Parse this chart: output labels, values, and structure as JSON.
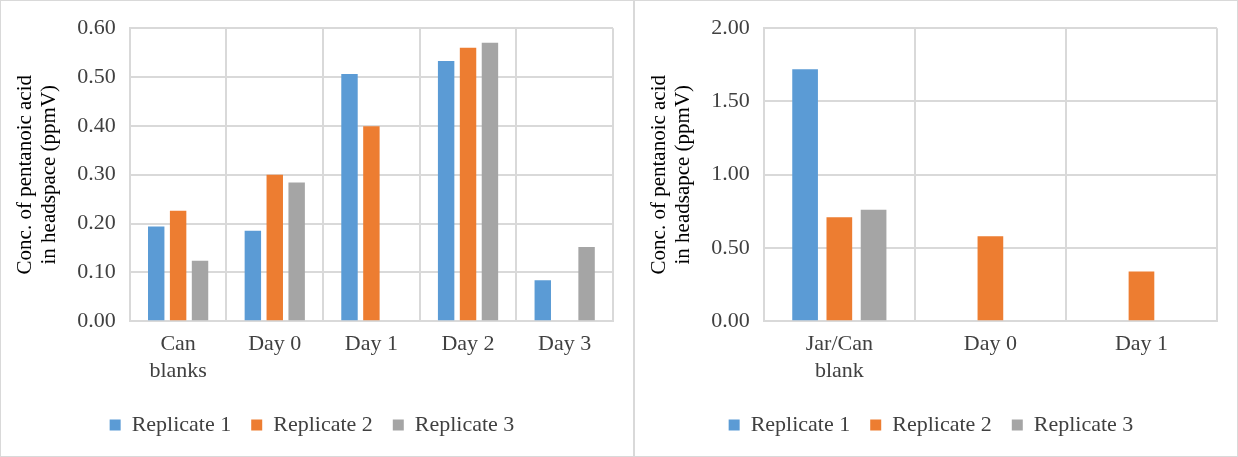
{
  "chart_data": [
    {
      "type": "bar",
      "ylabel": "Conc. of pentanoic acid in headspace (ppmV)",
      "categories": [
        "Can blanks",
        "Day 0",
        "Day 1",
        "Day 2",
        "Day 3"
      ],
      "series": [
        {
          "name": "Replicate 1",
          "color": "#5b9bd5",
          "values": [
            0.194,
            0.185,
            0.506,
            0.533,
            0.084
          ]
        },
        {
          "name": "Replicate 2",
          "color": "#ed7d31",
          "values": [
            0.226,
            0.3,
            0.399,
            0.56,
            null
          ]
        },
        {
          "name": "Replicate 3",
          "color": "#a5a5a5",
          "values": [
            0.124,
            0.284,
            null,
            0.57,
            0.152
          ]
        }
      ],
      "ylim": [
        0,
        0.6
      ],
      "yticks": [
        {
          "value": 0,
          "label": "0.00"
        },
        {
          "value": 0.1,
          "label": "0.10"
        },
        {
          "value": 0.2,
          "label": "0.20"
        },
        {
          "value": 0.3,
          "label": "0.30"
        },
        {
          "value": 0.4,
          "label": "0.40"
        },
        {
          "value": 0.5,
          "label": "0.50"
        },
        {
          "value": 0.6,
          "label": "0.60"
        }
      ],
      "grid": true,
      "legend": "bottom"
    },
    {
      "type": "bar",
      "ylabel": "Conc. of pentanoic acid in headsapce (ppmV)",
      "categories": [
        "Jar/Can blank",
        "Day 0",
        "Day 1"
      ],
      "series": [
        {
          "name": "Replicate 1",
          "color": "#5b9bd5",
          "values": [
            1.72,
            null,
            null
          ]
        },
        {
          "name": "Replicate 2",
          "color": "#ed7d31",
          "values": [
            0.71,
            0.58,
            0.34
          ]
        },
        {
          "name": "Replicate 3",
          "color": "#a5a5a5",
          "values": [
            0.76,
            null,
            null
          ]
        }
      ],
      "ylim": [
        0,
        2
      ],
      "yticks": [
        {
          "value": 0,
          "label": "0.00"
        },
        {
          "value": 0.5,
          "label": "0.50"
        },
        {
          "value": 1,
          "label": "1.00"
        },
        {
          "value": 1.5,
          "label": "1.50"
        },
        {
          "value": 2,
          "label": "2.00"
        }
      ],
      "grid": true,
      "legend": "bottom"
    }
  ]
}
